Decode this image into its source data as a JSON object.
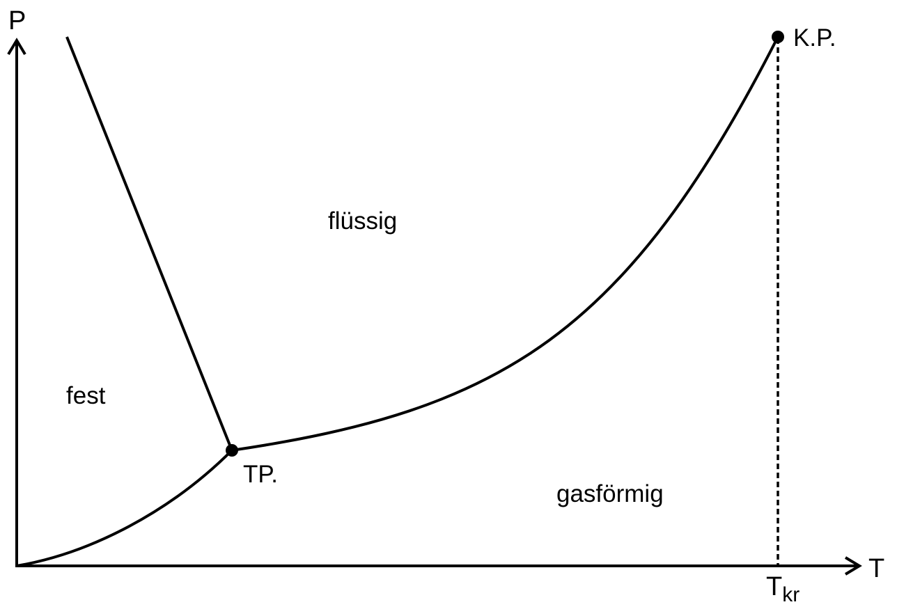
{
  "axes": {
    "y_label": "P",
    "x_label": "T",
    "x_mark_main": "T",
    "x_mark_sub": "kr"
  },
  "regions": {
    "solid": "fest",
    "liquid": "flüssig",
    "gas": "gasförmig"
  },
  "points": {
    "triple": "TP.",
    "critical": "K.P."
  },
  "colors": {
    "ink": "#000000",
    "background": "#ffffff"
  }
}
